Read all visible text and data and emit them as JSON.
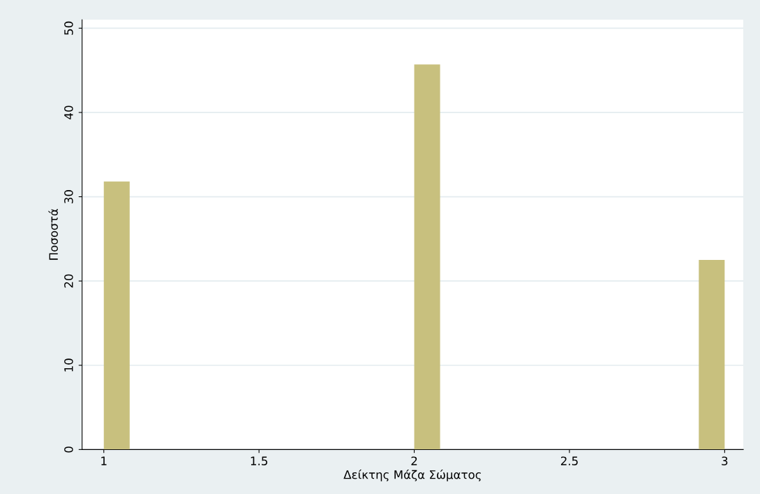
{
  "chart_data": {
    "type": "histogram",
    "xlabel": "Δείκτης Μάζα Σώματος",
    "ylabel": "Ποσοστά",
    "bins": [
      1,
      1.0833,
      1.1667,
      1.25,
      1.3333,
      1.4167,
      1.5,
      1.5833,
      1.6667,
      1.75,
      1.8333,
      1.9167,
      2,
      2.0833,
      2.1667,
      2.25,
      2.3333,
      2.4167,
      2.5,
      2.5833,
      2.6667,
      2.75,
      2.8333,
      2.9167,
      3
    ],
    "values": [
      31.8,
      0,
      0,
      0,
      0,
      0,
      0,
      0,
      0,
      0,
      0,
      0,
      45.7,
      0,
      0,
      0,
      0,
      0,
      0,
      0,
      0,
      0,
      0,
      22.5
    ],
    "color": "#c8c07e",
    "xlim": [
      0.93,
      3.06
    ],
    "xticks": [
      1,
      1.5,
      2,
      2.5,
      3
    ],
    "ylim": [
      0,
      51
    ],
    "yticks": [
      0,
      10,
      20,
      30,
      40,
      50
    ],
    "grid": "y"
  }
}
